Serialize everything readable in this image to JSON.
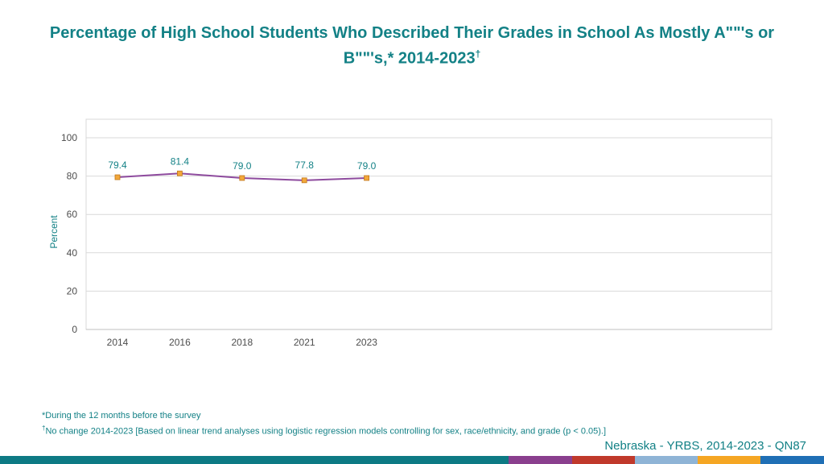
{
  "title": {
    "text": "Percentage of High School Students Who Described Their Grades in School As Mostly A\"\"'s or B\"\"'s,* 2014-2023",
    "mark": "†"
  },
  "chart_data": {
    "type": "line",
    "categories": [
      "2014",
      "2016",
      "2018",
      "2021",
      "2023"
    ],
    "series": [
      {
        "values": [
          79.4,
          81.4,
          79.0,
          77.8,
          79.0
        ],
        "labels": [
          "79.4",
          "81.4",
          "79.0",
          "77.8",
          "79.0"
        ]
      }
    ],
    "ylabel": "Percent",
    "xlabel": "",
    "ylim": [
      0,
      100
    ],
    "yticks": [
      "0",
      "20",
      "40",
      "60",
      "80",
      "100"
    ],
    "grid": true,
    "legend": "none",
    "colors": {
      "line": "#8e4b9e",
      "marker": "#f2a83b",
      "marker_edge": "#c2761a",
      "grid": "#d9d9d9",
      "labels": "#138186"
    }
  },
  "footnotes": {
    "note1": "*During the 12 months before the survey",
    "note2_mark": "†",
    "note2": "No change 2014-2023 [Based on linear trend analyses using logistic regression models controlling for sex, race/ethnicity, and grade (p < 0.05).]"
  },
  "source": "Nebraska - YRBS, 2014-2023 - QN87",
  "bottom_bar_colors": [
    "#0d7a84",
    "#8a3f8e",
    "#c0392b",
    "#8fb4d6",
    "#f5a623",
    "#1f6fb5"
  ]
}
